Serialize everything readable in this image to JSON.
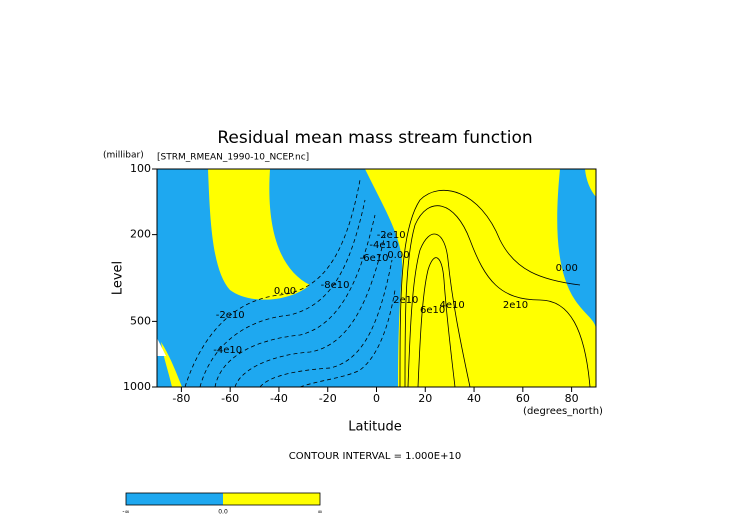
{
  "chart_data": {
    "type": "contour",
    "title": "Residual mean mass stream function",
    "y_units": "(millibar)",
    "subtitle": "[STRM_RMEAN_1990-10_NCEP.nc]",
    "y_label": "Level",
    "x_label": "Latitude",
    "x_units": "(degrees_north)",
    "note": "CONTOUR INTERVAL = 1.000E+10",
    "xlim": [
      -90,
      90
    ],
    "xticks": [
      -80,
      -60,
      -40,
      -20,
      0,
      20,
      40,
      60,
      80
    ],
    "ylim": [
      1000,
      100
    ],
    "yticks": [
      100,
      200,
      500,
      1000
    ],
    "log_y": true,
    "colors": [
      "#1ea8f0",
      "#ffff00"
    ],
    "colorbar_labels": [
      "-∞",
      "0.0",
      "∞"
    ],
    "contour_labels": [
      {
        "label": "0.00",
        "lat": -37.5,
        "level": 363
      },
      {
        "label": "-2e10",
        "lat": -60,
        "level": 468
      },
      {
        "label": "-4e10",
        "lat": -61,
        "level": 677
      },
      {
        "label": "-8e10",
        "lat": -17,
        "level": 340
      },
      {
        "label": "-6e10",
        "lat": -1,
        "level": 256
      },
      {
        "label": "-4e10",
        "lat": 3,
        "level": 223
      },
      {
        "label": "-2e10",
        "lat": 6,
        "level": 201
      },
      {
        "label": "0.00",
        "lat": 9,
        "level": 248
      },
      {
        "label": "2e10",
        "lat": 12,
        "level": 399
      },
      {
        "label": "6e10",
        "lat": 23,
        "level": 444
      },
      {
        "label": "4e10",
        "lat": 31,
        "level": 421
      },
      {
        "label": "2e10",
        "lat": 57,
        "level": 421
      },
      {
        "label": "0.00",
        "lat": 78,
        "level": 284
      }
    ]
  }
}
